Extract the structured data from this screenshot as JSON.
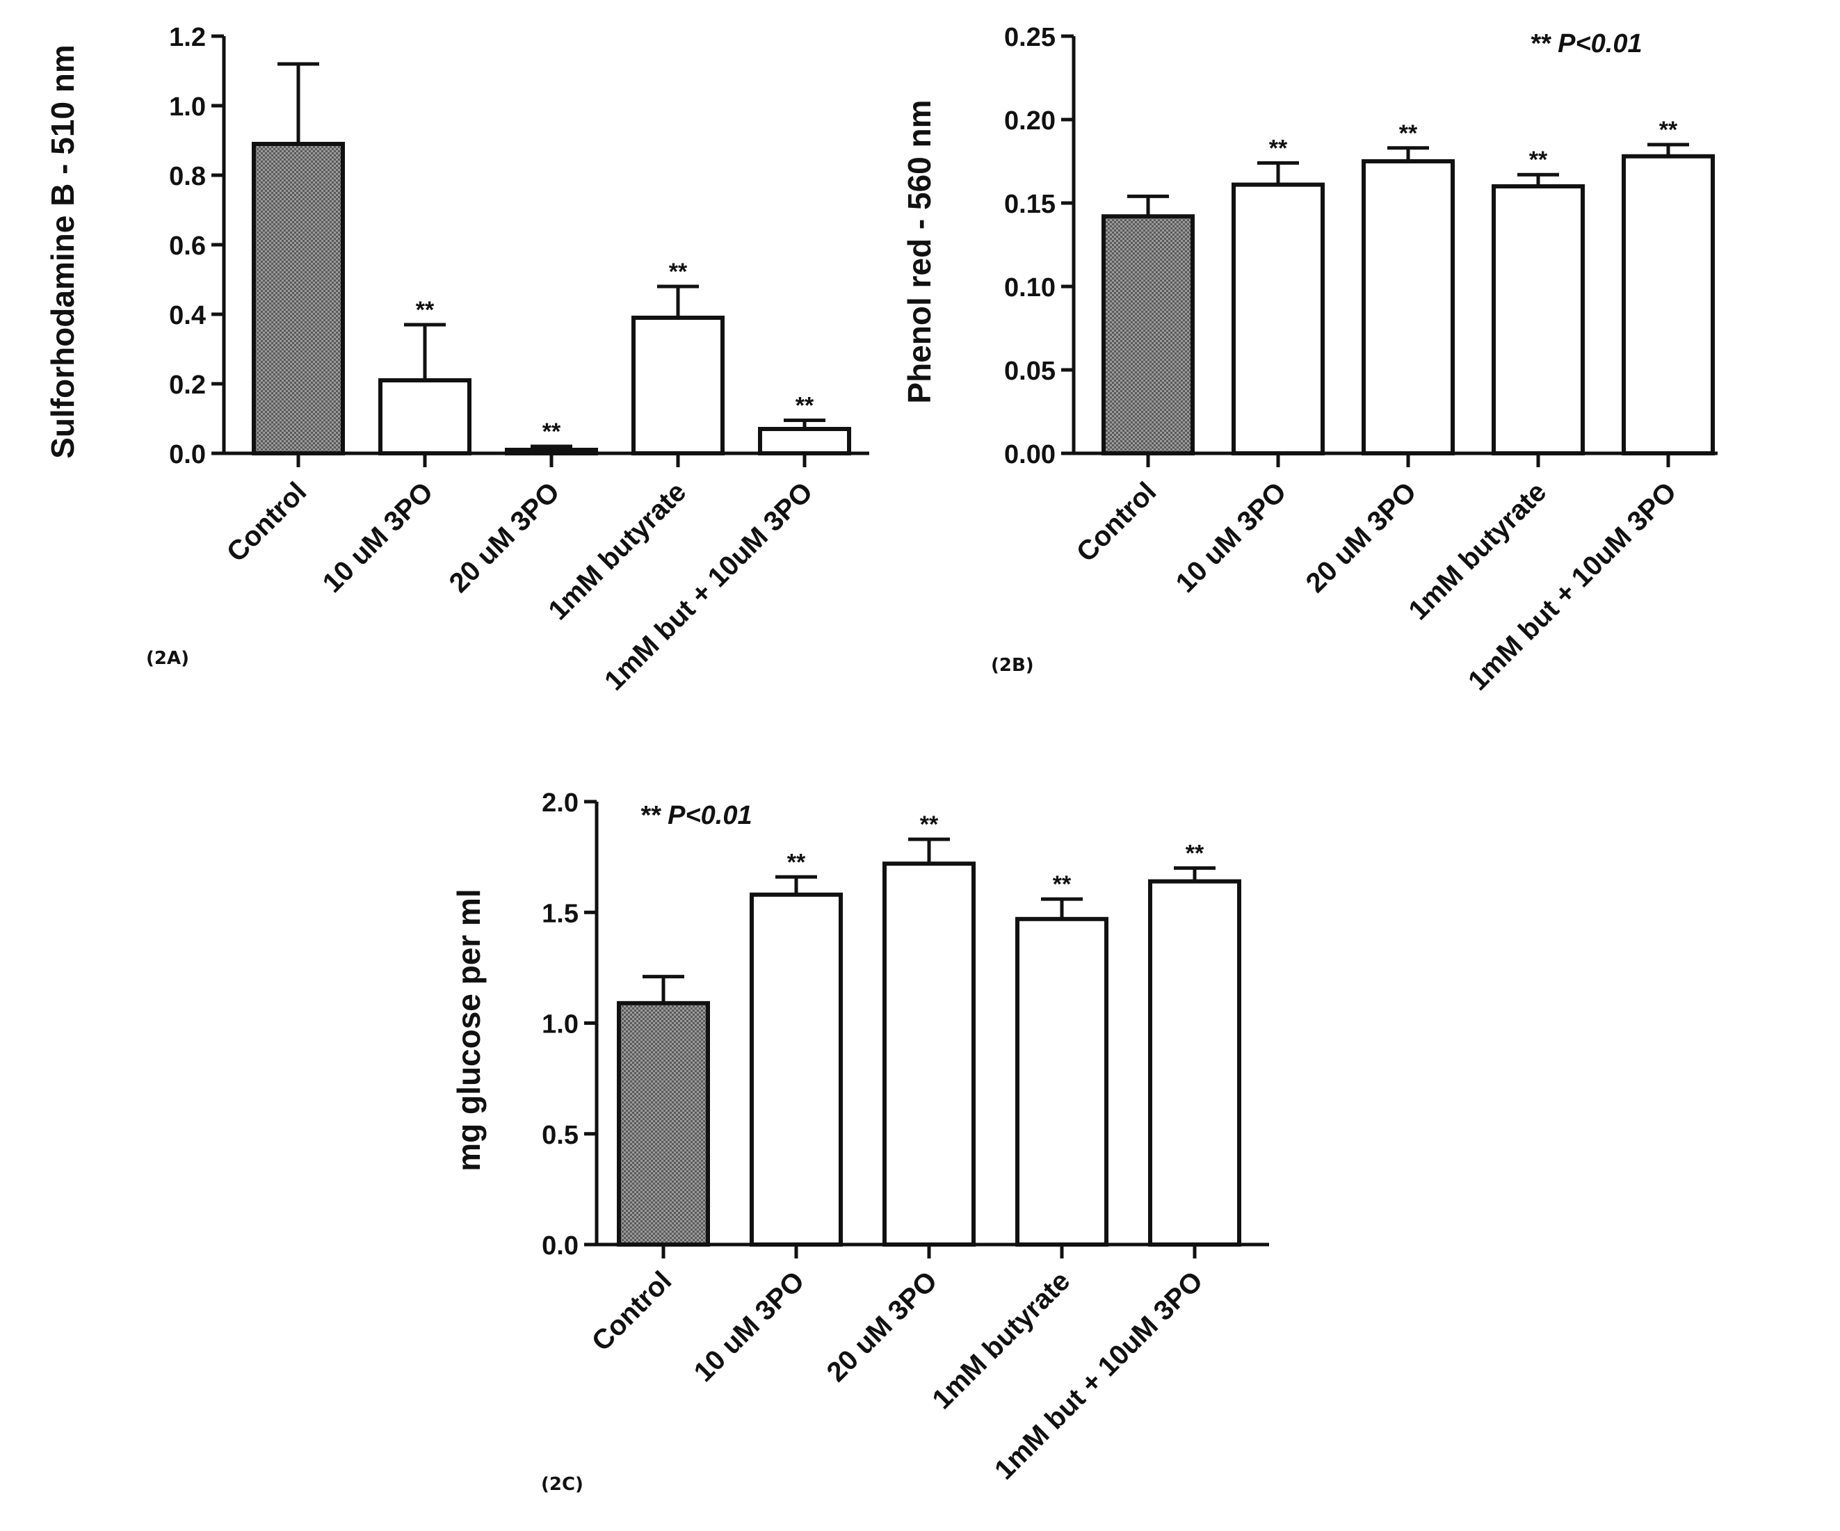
{
  "chart_data": [
    {
      "panel": "(2A)",
      "type": "bar",
      "ylabel": "Sulforhodamine B - 510 nm",
      "ylim": [
        0,
        1.2
      ],
      "yticks": [
        "0.0",
        "0.2",
        "0.4",
        "0.6",
        "0.8",
        "1.0",
        "1.2"
      ],
      "categories": [
        "Control",
        "10 uM 3PO",
        "20 uM 3PO",
        "1mM butyrate",
        "1mM but + 10uM 3PO"
      ],
      "values": [
        0.89,
        0.21,
        0.01,
        0.39,
        0.07
      ],
      "errors": [
        0.23,
        0.16,
        0.01,
        0.09,
        0.025
      ],
      "significance": [
        "",
        "**",
        "**",
        "**",
        "**"
      ],
      "p_note": ""
    },
    {
      "panel": "(2B)",
      "type": "bar",
      "ylabel": "Phenol red - 560 nm",
      "ylim": [
        0,
        0.25
      ],
      "yticks": [
        "0.00",
        "0.05",
        "0.10",
        "0.15",
        "0.20",
        "0.25"
      ],
      "categories": [
        "Control",
        "10 uM 3PO",
        "20 uM 3PO",
        "1mM butyrate",
        "1mM but + 10uM 3PO"
      ],
      "values": [
        0.142,
        0.161,
        0.175,
        0.16,
        0.178
      ],
      "errors": [
        0.012,
        0.013,
        0.008,
        0.007,
        0.007
      ],
      "significance": [
        "",
        "**",
        "**",
        "**",
        "**"
      ],
      "p_note": "** P<0.01"
    },
    {
      "panel": "(2C)",
      "type": "bar",
      "ylabel": "mg glucose per ml",
      "ylim": [
        0,
        2.0
      ],
      "yticks": [
        "0.0",
        "0.5",
        "1.0",
        "1.5",
        "2.0"
      ],
      "categories": [
        "Control",
        "10 uM 3PO",
        "20 uM 3PO",
        "1mM butyrate",
        "1mM but + 10uM 3PO"
      ],
      "values": [
        1.09,
        1.58,
        1.72,
        1.47,
        1.64
      ],
      "errors": [
        0.12,
        0.08,
        0.11,
        0.09,
        0.06
      ],
      "significance": [
        "",
        "**",
        "**",
        "**",
        "**"
      ],
      "p_note": "** P<0.01"
    }
  ],
  "style": {
    "control_fill": "#8c8c8c",
    "bar_fill": "#ffffff",
    "stroke": "#111111"
  }
}
